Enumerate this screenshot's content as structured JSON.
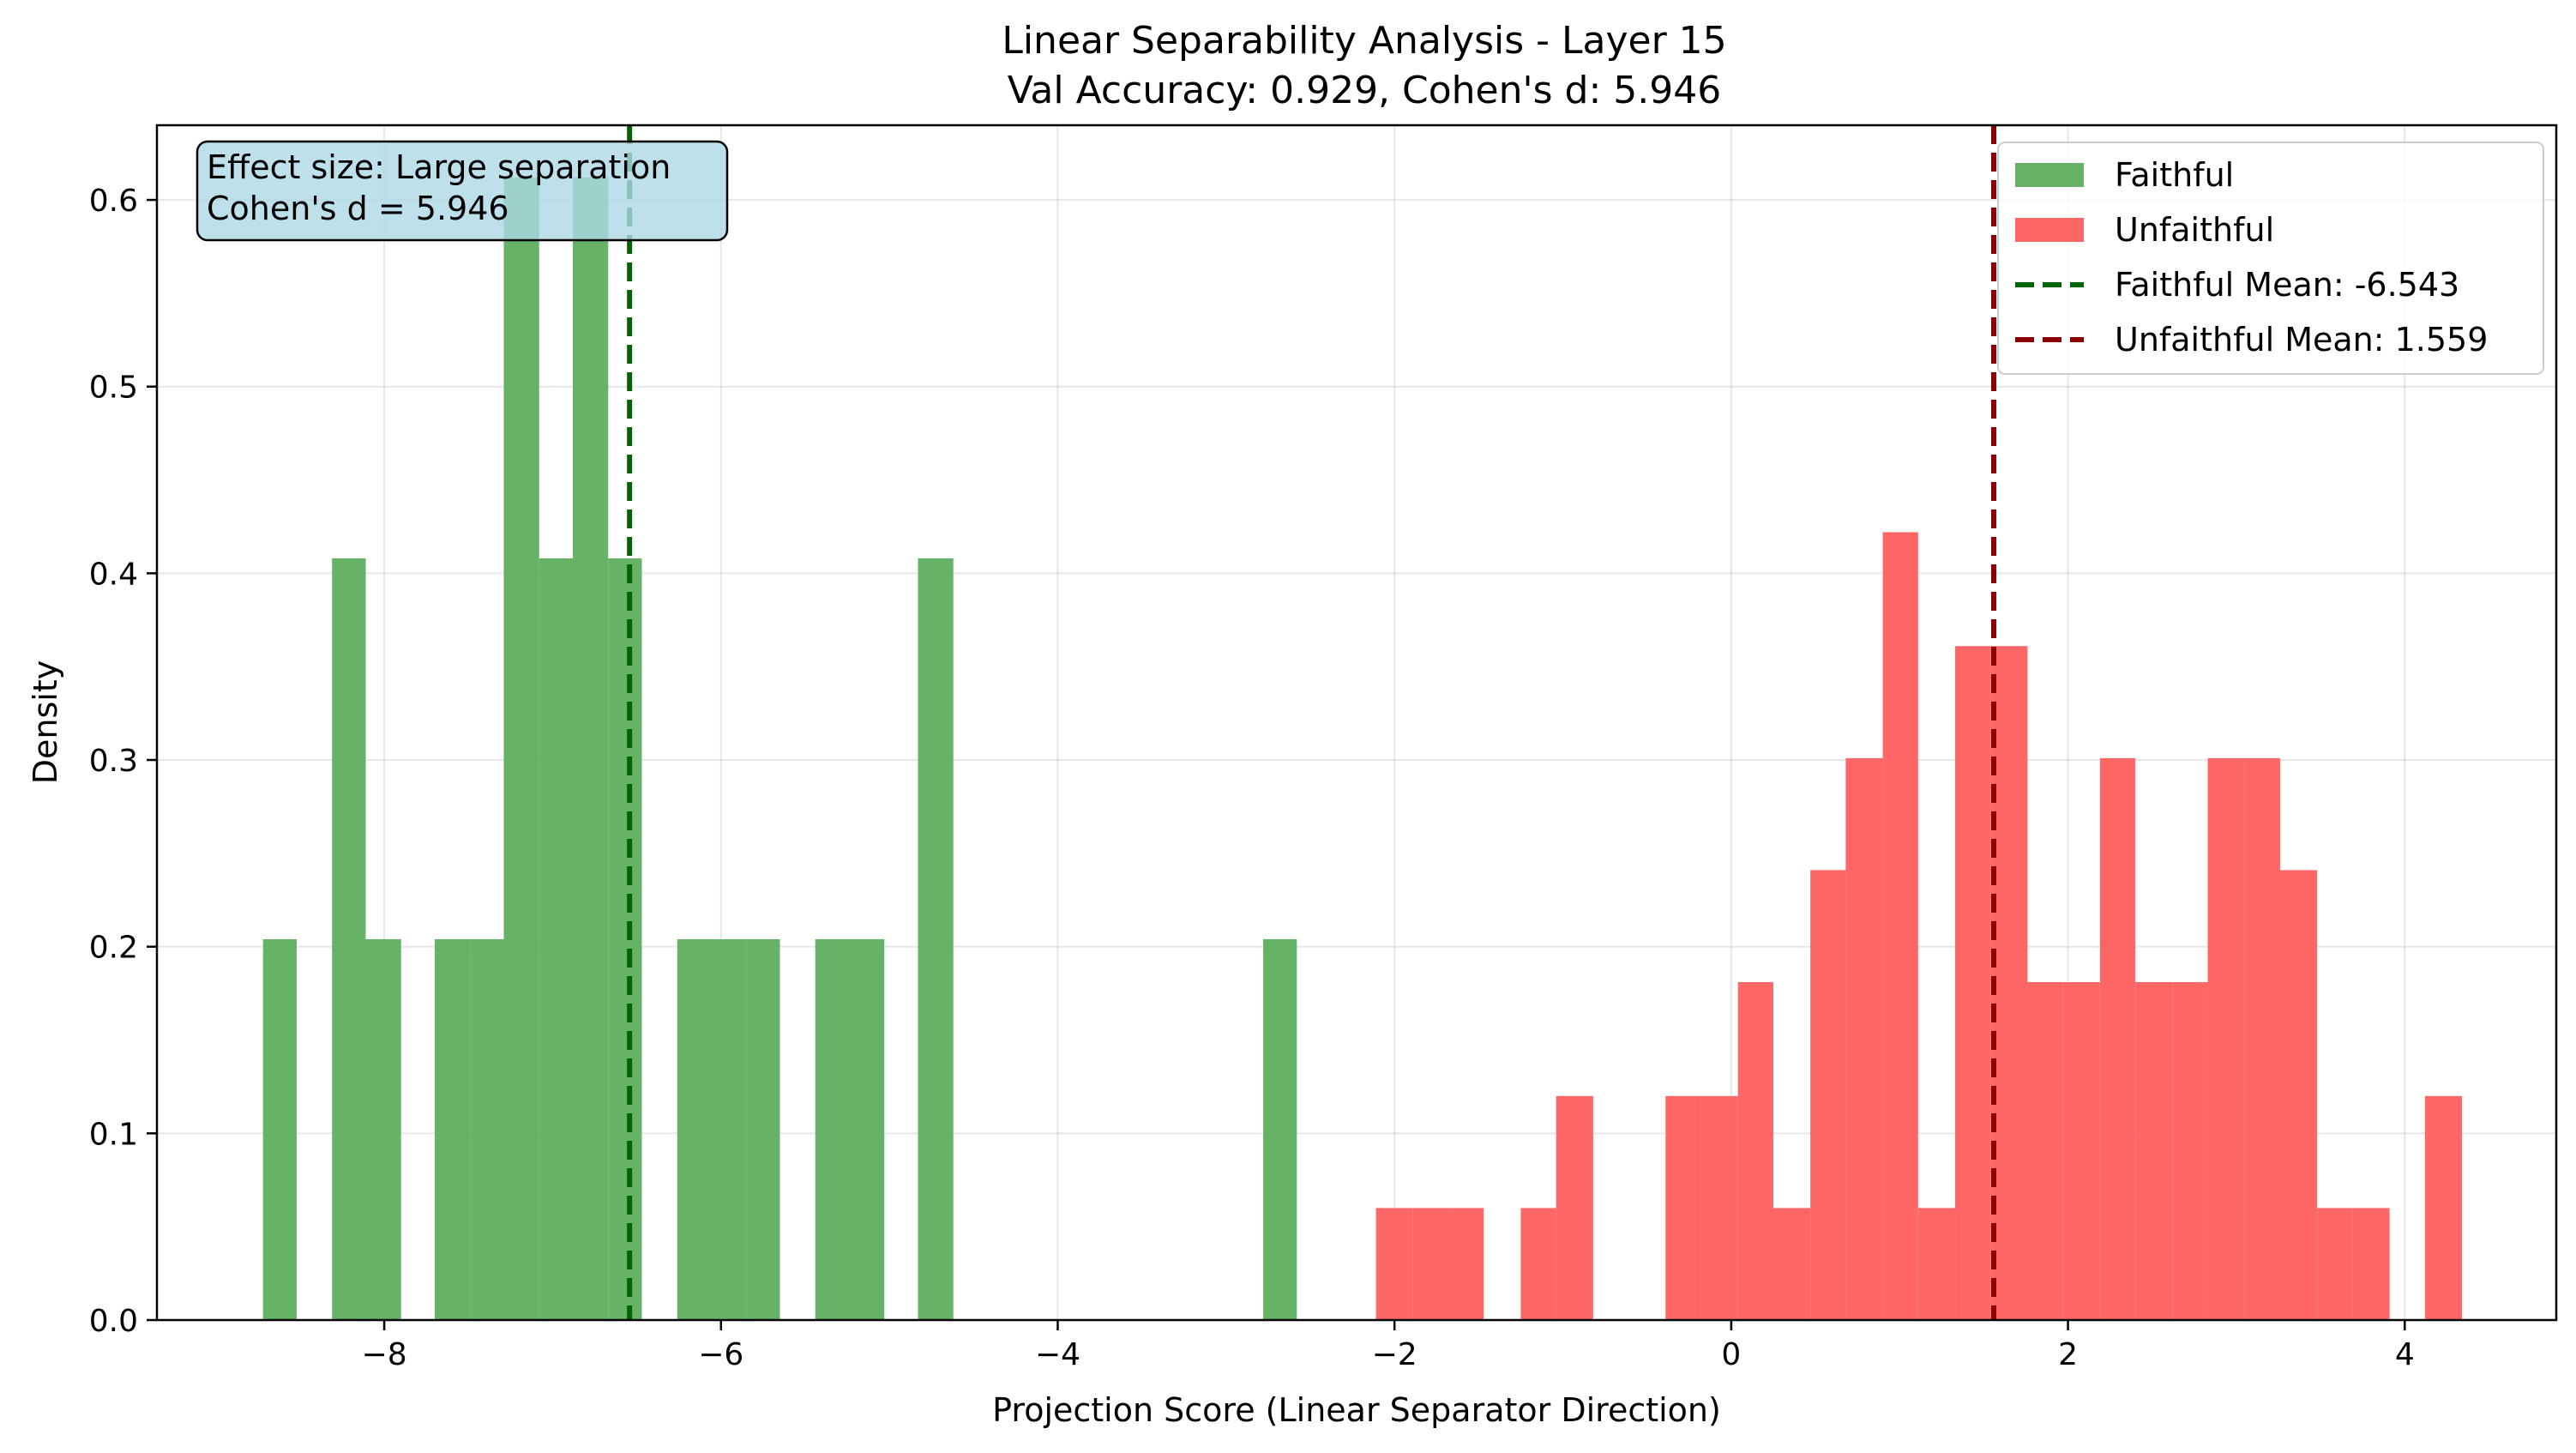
{
  "chart_data": {
    "type": "bar",
    "title_line1": "Linear Separability Analysis - Layer 15",
    "title_line2": "Val Accuracy: 0.929, Cohen's d: 5.946",
    "xlabel": "Projection Score (Linear Separator Direction)",
    "ylabel": "Density",
    "xlim": [
      -9.35,
      4.9
    ],
    "ylim": [
      0,
      0.64
    ],
    "xticks": [
      {
        "value": -8,
        "label": "−8"
      },
      {
        "value": -6,
        "label": "−6"
      },
      {
        "value": -4,
        "label": "−4"
      },
      {
        "value": -2,
        "label": "−2"
      },
      {
        "value": 0,
        "label": "0"
      },
      {
        "value": 2,
        "label": "2"
      },
      {
        "value": 4,
        "label": "4"
      }
    ],
    "yticks": [
      {
        "value": 0.0,
        "label": "0.0"
      },
      {
        "value": 0.1,
        "label": "0.1"
      },
      {
        "value": 0.2,
        "label": "0.2"
      },
      {
        "value": 0.3,
        "label": "0.3"
      },
      {
        "value": 0.4,
        "label": "0.4"
      },
      {
        "value": 0.5,
        "label": "0.5"
      },
      {
        "value": 0.6,
        "label": "0.6"
      }
    ],
    "grid": true,
    "legend_position": "top-right",
    "series": [
      {
        "name": "Faithful",
        "color": "#66b266",
        "bins": [
          {
            "x0": -8.72,
            "x1": -8.52,
            "density": 0.204
          },
          {
            "x0": -8.31,
            "x1": -8.11,
            "density": 0.408
          },
          {
            "x0": -8.11,
            "x1": -7.9,
            "density": 0.204
          },
          {
            "x0": -7.7,
            "x1": -7.49,
            "density": 0.204
          },
          {
            "x0": -7.49,
            "x1": -7.29,
            "density": 0.204
          },
          {
            "x0": -7.29,
            "x1": -7.08,
            "density": 0.612
          },
          {
            "x0": -7.08,
            "x1": -6.88,
            "density": 0.408
          },
          {
            "x0": -6.88,
            "x1": -6.67,
            "density": 0.612
          },
          {
            "x0": -6.67,
            "x1": -6.47,
            "density": 0.408
          },
          {
            "x0": -6.26,
            "x1": -6.06,
            "density": 0.204
          },
          {
            "x0": -6.06,
            "x1": -5.85,
            "density": 0.204
          },
          {
            "x0": -5.85,
            "x1": -5.65,
            "density": 0.204
          },
          {
            "x0": -5.44,
            "x1": -5.24,
            "density": 0.204
          },
          {
            "x0": -5.24,
            "x1": -5.03,
            "density": 0.204
          },
          {
            "x0": -4.83,
            "x1": -4.62,
            "density": 0.408
          },
          {
            "x0": -2.78,
            "x1": -2.58,
            "density": 0.204
          }
        ]
      },
      {
        "name": "Unfaithful",
        "color": "#ff6666",
        "bins": [
          {
            "x0": -2.11,
            "x1": -1.89,
            "density": 0.06
          },
          {
            "x0": -1.89,
            "x1": -1.68,
            "density": 0.06
          },
          {
            "x0": -1.68,
            "x1": -1.47,
            "density": 0.06
          },
          {
            "x0": -1.25,
            "x1": -1.04,
            "density": 0.06
          },
          {
            "x0": -1.04,
            "x1": -0.82,
            "density": 0.12
          },
          {
            "x0": -0.39,
            "x1": -0.18,
            "density": 0.12
          },
          {
            "x0": -0.18,
            "x1": 0.04,
            "density": 0.12
          },
          {
            "x0": 0.04,
            "x1": 0.25,
            "density": 0.181
          },
          {
            "x0": 0.25,
            "x1": 0.47,
            "density": 0.06
          },
          {
            "x0": 0.47,
            "x1": 0.68,
            "density": 0.241
          },
          {
            "x0": 0.68,
            "x1": 0.9,
            "density": 0.301
          },
          {
            "x0": 0.9,
            "x1": 1.11,
            "density": 0.422
          },
          {
            "x0": 1.11,
            "x1": 1.33,
            "density": 0.06
          },
          {
            "x0": 1.33,
            "x1": 1.54,
            "density": 0.361
          },
          {
            "x0": 1.54,
            "x1": 1.76,
            "density": 0.361
          },
          {
            "x0": 1.76,
            "x1": 1.97,
            "density": 0.181
          },
          {
            "x0": 1.97,
            "x1": 2.19,
            "density": 0.181
          },
          {
            "x0": 2.19,
            "x1": 2.4,
            "density": 0.301
          },
          {
            "x0": 2.4,
            "x1": 2.62,
            "density": 0.181
          },
          {
            "x0": 2.62,
            "x1": 2.83,
            "density": 0.181
          },
          {
            "x0": 2.83,
            "x1": 3.05,
            "density": 0.301
          },
          {
            "x0": 3.05,
            "x1": 3.26,
            "density": 0.301
          },
          {
            "x0": 3.26,
            "x1": 3.48,
            "density": 0.241
          },
          {
            "x0": 3.48,
            "x1": 3.69,
            "density": 0.06
          },
          {
            "x0": 3.69,
            "x1": 3.91,
            "density": 0.06
          },
          {
            "x0": 4.12,
            "x1": 4.34,
            "density": 0.12
          }
        ]
      }
    ],
    "mean_lines": [
      {
        "label": "Faithful Mean: -6.543",
        "value": -6.543,
        "color": "#006400"
      },
      {
        "label": "Unfaithful Mean: 1.559",
        "value": 1.559,
        "color": "#8b0000"
      }
    ],
    "annotation": {
      "line1": "Effect size: Large separation",
      "line2": "Cohen's d = 5.946",
      "background": "#add8e6"
    }
  }
}
